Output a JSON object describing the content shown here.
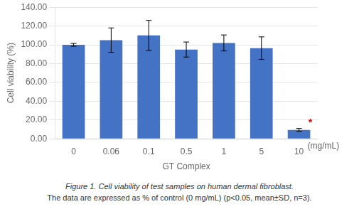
{
  "chart_data": {
    "type": "bar",
    "categories": [
      "0",
      "0.06",
      "0.1",
      "0.5",
      "1",
      "5",
      "10"
    ],
    "values": [
      100.0,
      105.0,
      110.0,
      95.0,
      102.0,
      96.5,
      9.5
    ],
    "errors": [
      1.5,
      13.0,
      16.0,
      8.0,
      8.5,
      12.0,
      1.5
    ],
    "color": "#4472C4",
    "xlabel": "GT Complex",
    "ylabel": "Cell viability (%)",
    "ylim": [
      0,
      140
    ],
    "yticks": [
      {
        "value": 0,
        "label": "0.00"
      },
      {
        "value": 20,
        "label": "20.00"
      },
      {
        "value": 40,
        "label": "40.00"
      },
      {
        "value": 60,
        "label": "60.00"
      },
      {
        "value": 80,
        "label": "80.00"
      },
      {
        "value": 100,
        "label": "100.00"
      },
      {
        "value": 120,
        "label": "120.00"
      },
      {
        "value": 140,
        "label": "140.00"
      }
    ],
    "grid": true,
    "annotations": [
      {
        "text": "*",
        "color": "#FF0000",
        "category": "10"
      },
      {
        "text": "(mg/mL)",
        "category": "10"
      },
      {
        "text": "Figure 1. Cell viability of test samples on human dermal fibroblast."
      },
      {
        "text": "The data are expressed as % of control (0 mg/mL) (p<0.05, mean±SD, n=3)."
      }
    ]
  }
}
